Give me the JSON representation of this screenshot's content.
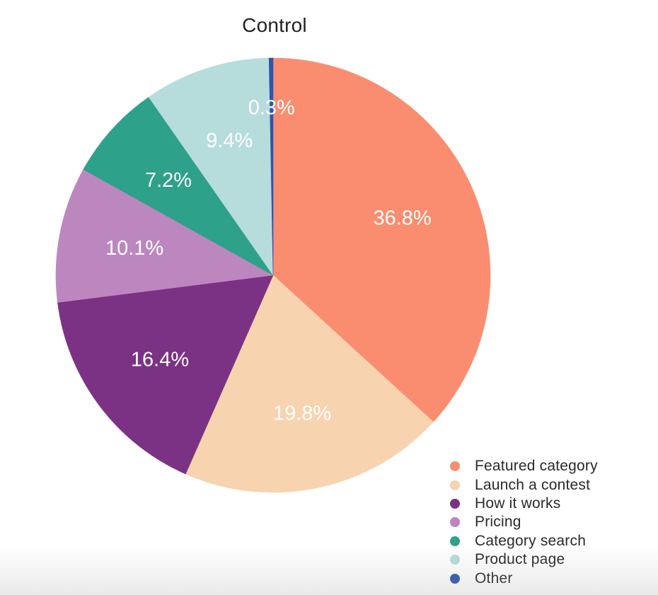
{
  "page": {
    "background": "#ffffff"
  },
  "chart_data": {
    "type": "pie",
    "title": "Control",
    "start_angle_deg": 0,
    "direction": "clockwise",
    "legend_position": "right-bottom",
    "labels_inside": true,
    "label_text_color": "#ffffff",
    "legend_text_color": "#2a2a2a",
    "slices": [
      {
        "label": "Featured category",
        "value": 36.8,
        "display": "36.8%",
        "color": "#FA8D70",
        "label_r": 0.65
      },
      {
        "label": "Launch a contest",
        "value": 19.8,
        "display": "19.8%",
        "color": "#F7D3B0",
        "label_r": 0.65
      },
      {
        "label": "How it works",
        "value": 16.4,
        "display": "16.4%",
        "color": "#7C3284",
        "label_r": 0.65
      },
      {
        "label": "Pricing",
        "value": 10.1,
        "display": "10.1%",
        "color": "#BC87BE",
        "label_r": 0.65
      },
      {
        "label": "Category search",
        "value": 7.2,
        "display": "7.2%",
        "color": "#2DA189",
        "label_r": 0.65
      },
      {
        "label": "Product page",
        "value": 9.4,
        "display": "9.4%",
        "color": "#B7DCDC",
        "label_r": 0.65
      },
      {
        "label": "Other",
        "value": 0.3,
        "display": "0.3%",
        "color": "#2E53B4",
        "label_r": 0.77
      }
    ]
  }
}
